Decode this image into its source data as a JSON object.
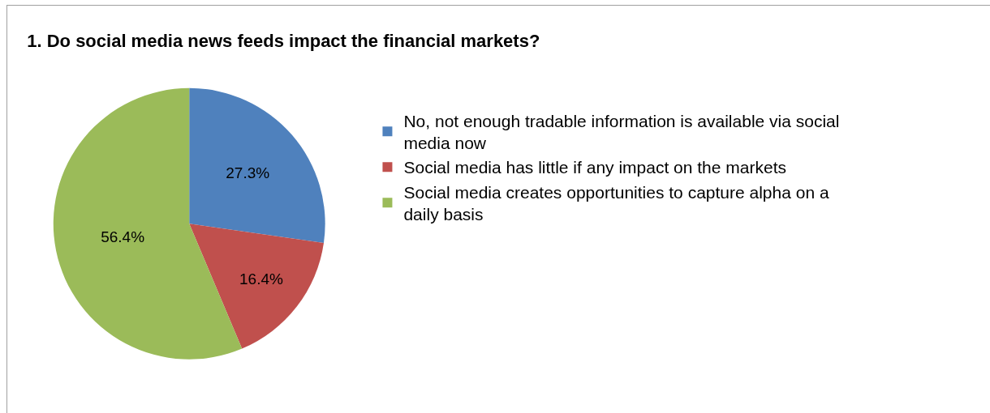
{
  "chart_data": {
    "type": "pie",
    "title": "1. Do social media news feeds impact the financial markets?",
    "categories": [
      "No, not enough tradable information is available via social media now",
      "Social media has little if any impact on the markets",
      "Social media creates opportunities to capture alpha on a daily basis"
    ],
    "values": [
      27.3,
      16.4,
      56.4
    ],
    "colors": [
      "#4f81bd",
      "#c0504d",
      "#9bbb59"
    ],
    "value_labels": [
      "27.3%",
      "16.4%",
      "56.4%"
    ],
    "legend": "right"
  }
}
